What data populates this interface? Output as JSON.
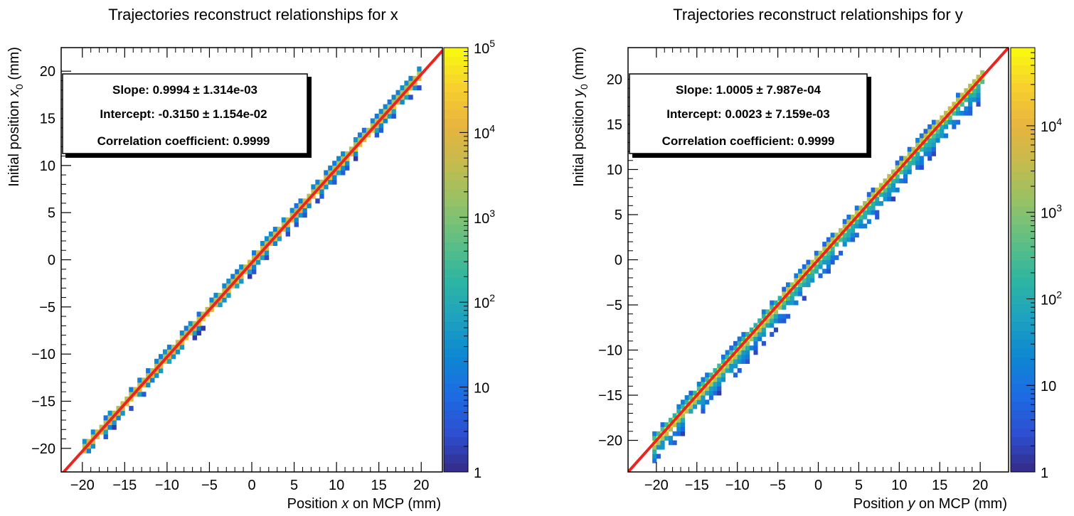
{
  "chart_data": [
    {
      "type": "heatmap",
      "title": "Trajectories reconstruct relationships for x",
      "xlabel": {
        "pre": "Position ",
        "var": "x",
        "post": " on MCP (mm)"
      },
      "ylabel": {
        "pre": "Initial position ",
        "var": "x",
        "sub": "0",
        "post": " (mm)"
      },
      "xlim": [
        -22.5,
        22.5
      ],
      "ylim": [
        -22.5,
        22.5
      ],
      "xticks": [
        -20,
        -15,
        -10,
        -5,
        0,
        5,
        10,
        15,
        20
      ],
      "yticks": [
        -20,
        -15,
        -10,
        -5,
        0,
        5,
        10,
        15,
        20
      ],
      "tick_labels": [
        "−20",
        "−15",
        "−10",
        "−5",
        "0",
        "5",
        "10",
        "15",
        "20"
      ],
      "zlim": [
        1,
        100000
      ],
      "colorbar_labels": [
        {
          "value": 1,
          "text": "1"
        },
        {
          "value": 10,
          "text": "10"
        },
        {
          "value": 100,
          "base": "10",
          "exp": "2"
        },
        {
          "value": 1000,
          "base": "10",
          "exp": "3"
        },
        {
          "value": 10000,
          "base": "10",
          "exp": "4"
        },
        {
          "value": 100000,
          "base": "10",
          "exp": "5"
        }
      ],
      "fit": {
        "slope": 0.9994,
        "intercept": -0.315,
        "color": "#e8251f"
      },
      "band": {
        "x_range": [
          -20,
          20
        ],
        "core_width": 0.35,
        "scatter_width": 0.9,
        "bias": 0.0
      },
      "stats_box": [
        {
          "label": "Slope: 0.9994",
          "err": " ± 1.314e-03"
        },
        {
          "label": "Intercept: -0.3150",
          "err": " ± 1.154e-02"
        },
        {
          "label": "Correlation coefficient: 0.9999",
          "err": ""
        }
      ]
    },
    {
      "type": "heatmap",
      "title": "Trajectories reconstruct relationships for y",
      "xlabel": {
        "pre": "Position ",
        "var": "y",
        "post": " on MCP (mm)"
      },
      "ylabel": {
        "pre": "Initial position ",
        "var": "y",
        "sub": "0",
        "post": " (mm)"
      },
      "xlim": [
        -23.5,
        23.5
      ],
      "ylim": [
        -23.5,
        23.5
      ],
      "xticks": [
        -20,
        -15,
        -10,
        -5,
        0,
        5,
        10,
        15,
        20
      ],
      "yticks": [
        -20,
        -15,
        -10,
        -5,
        0,
        5,
        10,
        15,
        20
      ],
      "tick_labels": [
        "−20",
        "−15",
        "−10",
        "−5",
        "0",
        "5",
        "10",
        "15",
        "20"
      ],
      "zlim": [
        1,
        80000
      ],
      "colorbar_labels": [
        {
          "value": 1,
          "text": "1"
        },
        {
          "value": 10,
          "text": "10"
        },
        {
          "value": 100,
          "base": "10",
          "exp": "2"
        },
        {
          "value": 1000,
          "base": "10",
          "exp": "3"
        },
        {
          "value": 10000,
          "base": "10",
          "exp": "4"
        }
      ],
      "fit": {
        "slope": 1.0005,
        "intercept": 0.0023,
        "color": "#e8251f"
      },
      "band": {
        "x_range": [
          -20.5,
          20.5
        ],
        "core_width": 0.5,
        "scatter_width": 2.2,
        "bias": -1.0
      },
      "stats_box": [
        {
          "label": "Slope: 1.0005",
          "err": " ± 7.987e-04"
        },
        {
          "label": "Intercept: 0.0023",
          "err": " ± 7.159e-03"
        },
        {
          "label": "Correlation coefficient: 0.9999",
          "err": ""
        }
      ]
    }
  ]
}
